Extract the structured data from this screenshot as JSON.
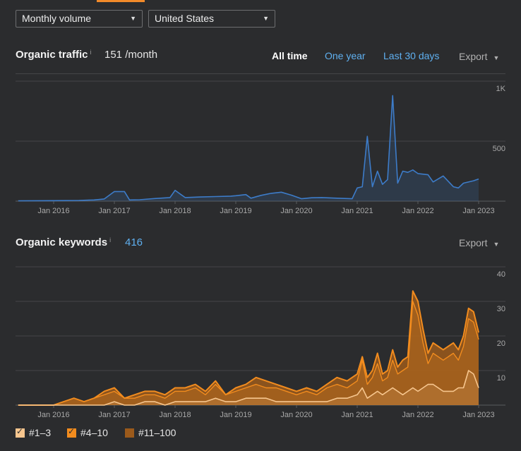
{
  "filters": {
    "volume_label": "Monthly volume",
    "country_label": "United States"
  },
  "traffic": {
    "title": "Organic traffic",
    "info": "i",
    "value": "151 /month",
    "ranges": [
      "All time",
      "One year",
      "Last 30 days"
    ],
    "active_range": "All time",
    "export_label": "Export"
  },
  "keywords": {
    "title": "Organic keywords",
    "info": "i",
    "value": "416",
    "export_label": "Export"
  },
  "legend": [
    {
      "label": "#1–3",
      "color": "#f7c68e",
      "checked": true
    },
    {
      "label": "#4–10",
      "color": "#f28c1e",
      "checked": true
    },
    {
      "label": "#11–100",
      "color": "#9b5a1b",
      "checked": false
    }
  ],
  "chart_data": [
    {
      "type": "line",
      "name": "Organic traffic",
      "x_tick_labels": [
        "Jan 2016",
        "Jan 2017",
        "Jan 2018",
        "Jan 2019",
        "Jan 2020",
        "Jan 2021",
        "Jan 2022",
        "Jan 2023"
      ],
      "y_tick_labels": [
        "1K",
        "500"
      ],
      "ylim": [
        0,
        1000
      ],
      "color": "#3d7cc9",
      "x": [
        "2015-06",
        "2016-01",
        "2016-06",
        "2016-09",
        "2016-11",
        "2017-01",
        "2017-03",
        "2017-04",
        "2017-06",
        "2017-09",
        "2017-12",
        "2018-01",
        "2018-03",
        "2018-06",
        "2018-09",
        "2018-12",
        "2019-01",
        "2019-03",
        "2019-04",
        "2019-06",
        "2019-08",
        "2019-10",
        "2019-12",
        "2020-02",
        "2020-04",
        "2020-06",
        "2020-09",
        "2020-12",
        "2021-01",
        "2021-02",
        "2021-03",
        "2021-04",
        "2021-05",
        "2021-06",
        "2021-07",
        "2021-08",
        "2021-09",
        "2021-10",
        "2021-11",
        "2021-12",
        "2022-01",
        "2022-03",
        "2022-04",
        "2022-06",
        "2022-08",
        "2022-09",
        "2022-10",
        "2022-12",
        "2023-01"
      ],
      "y": [
        3,
        4,
        6,
        10,
        18,
        80,
        80,
        10,
        12,
        22,
        30,
        90,
        30,
        35,
        38,
        42,
        45,
        55,
        25,
        48,
        65,
        75,
        50,
        20,
        28,
        30,
        25,
        20,
        110,
        120,
        540,
        120,
        250,
        140,
        180,
        880,
        150,
        250,
        240,
        260,
        230,
        220,
        160,
        210,
        120,
        110,
        150,
        170,
        185
      ]
    },
    {
      "type": "area",
      "name": "Organic keywords",
      "x_tick_labels": [
        "Jan 2016",
        "Jan 2017",
        "Jan 2018",
        "Jan 2019",
        "Jan 2020",
        "Jan 2021",
        "Jan 2022",
        "Jan 2023"
      ],
      "y_tick_labels": [
        "40",
        "30",
        "20",
        "10"
      ],
      "ylim": [
        0,
        40
      ],
      "x": [
        "2015-06",
        "2016-01",
        "2016-03",
        "2016-05",
        "2016-07",
        "2016-09",
        "2016-11",
        "2017-01",
        "2017-03",
        "2017-05",
        "2017-07",
        "2017-09",
        "2017-11",
        "2018-01",
        "2018-03",
        "2018-05",
        "2018-07",
        "2018-09",
        "2018-11",
        "2019-01",
        "2019-03",
        "2019-05",
        "2019-07",
        "2019-09",
        "2019-11",
        "2020-01",
        "2020-03",
        "2020-05",
        "2020-07",
        "2020-09",
        "2020-11",
        "2021-01",
        "2021-02",
        "2021-03",
        "2021-04",
        "2021-05",
        "2021-06",
        "2021-07",
        "2021-08",
        "2021-09",
        "2021-10",
        "2021-11",
        "2021-12",
        "2022-01",
        "2022-02",
        "2022-03",
        "2022-04",
        "2022-05",
        "2022-06",
        "2022-07",
        "2022-08",
        "2022-09",
        "2022-10",
        "2022-11",
        "2022-12",
        "2023-01"
      ],
      "series": [
        {
          "name": "#11–100",
          "values": [
            0,
            0,
            1,
            2,
            1,
            2,
            4,
            5,
            2,
            3,
            4,
            4,
            3,
            5,
            5,
            6,
            4,
            7,
            3,
            5,
            6,
            8,
            7,
            6,
            5,
            4,
            5,
            4,
            6,
            8,
            7,
            9,
            14,
            8,
            10,
            15,
            9,
            10,
            16,
            11,
            13,
            14,
            33,
            30,
            22,
            15,
            18,
            17,
            16,
            17,
            18,
            16,
            20,
            28,
            27,
            21
          ]
        },
        {
          "name": "#4–10",
          "values": [
            0,
            0,
            1,
            2,
            1,
            2,
            3,
            4,
            2,
            2,
            3,
            3,
            2,
            4,
            4,
            5,
            3,
            6,
            3,
            4,
            5,
            6,
            5,
            5,
            4,
            3,
            4,
            3,
            5,
            6,
            5,
            7,
            13,
            6,
            8,
            12,
            7,
            8,
            13,
            9,
            10,
            11,
            30,
            26,
            18,
            12,
            15,
            14,
            13,
            14,
            15,
            13,
            17,
            25,
            24,
            19
          ]
        },
        {
          "name": "#1–3",
          "values": [
            0,
            0,
            0,
            0,
            0,
            0,
            0,
            1,
            0,
            0,
            1,
            1,
            0,
            1,
            1,
            1,
            1,
            2,
            1,
            1,
            2,
            2,
            2,
            1,
            1,
            1,
            1,
            1,
            1,
            2,
            2,
            3,
            5,
            2,
            3,
            4,
            3,
            4,
            5,
            4,
            3,
            4,
            5,
            4,
            5,
            6,
            6,
            5,
            4,
            4,
            4,
            5,
            5,
            10,
            9,
            5
          ]
        }
      ]
    }
  ]
}
